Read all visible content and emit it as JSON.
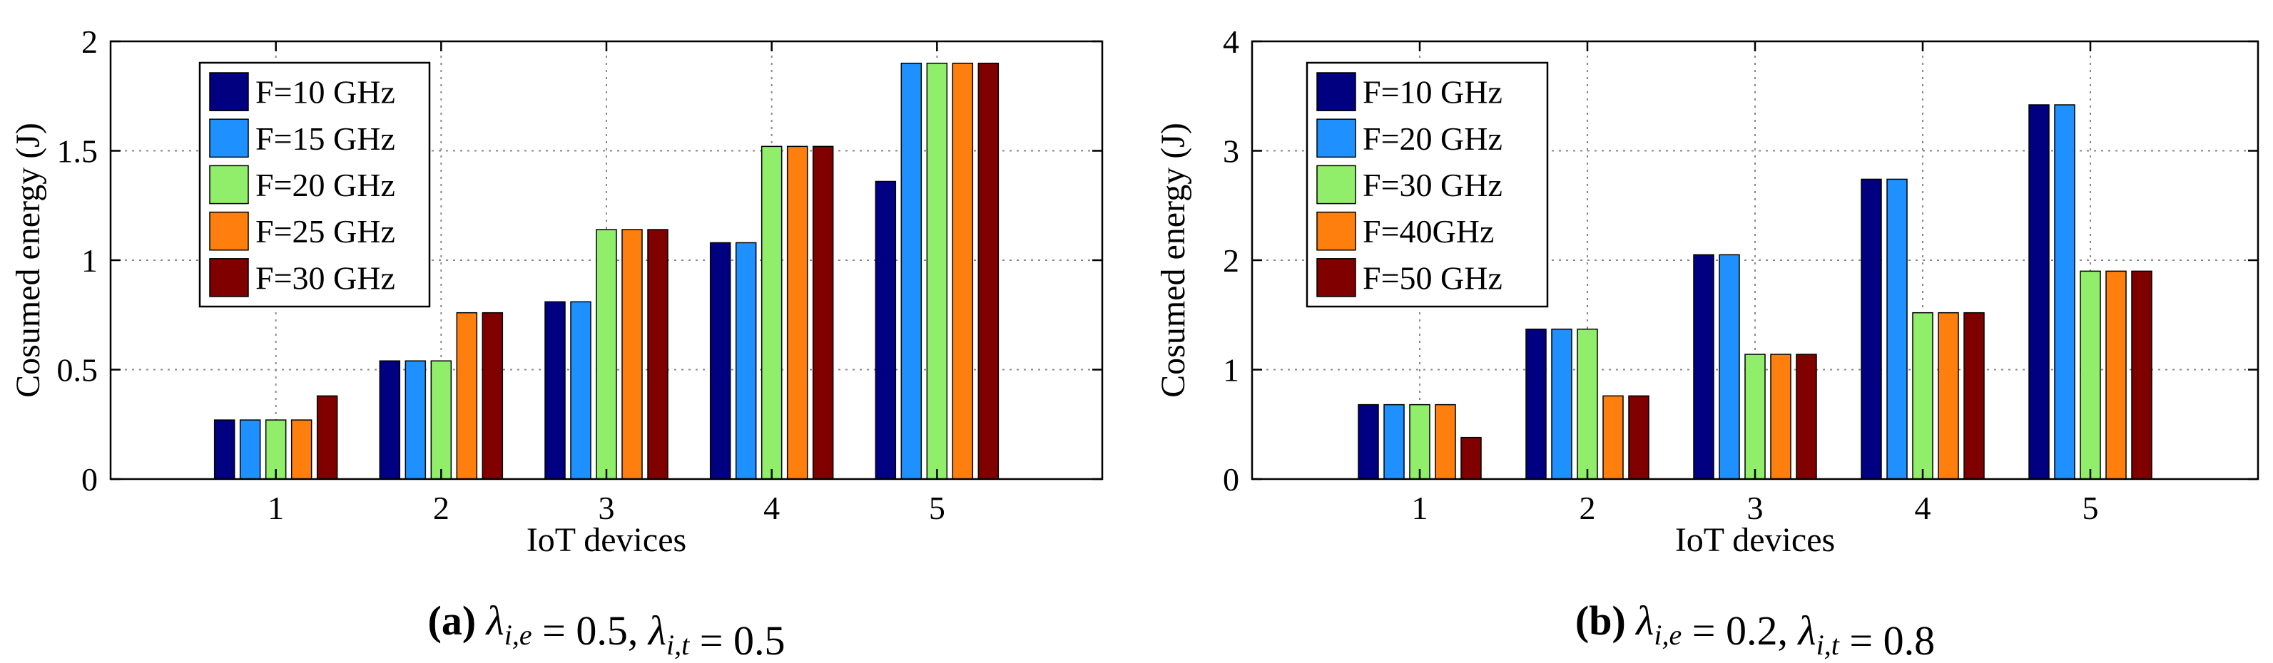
{
  "chart_data": [
    {
      "type": "bar",
      "id": "a",
      "categories": [
        "1",
        "2",
        "3",
        "4",
        "5"
      ],
      "series": [
        {
          "name": "F=10 GHz",
          "color": "#000080",
          "values": [
            0.27,
            0.54,
            0.81,
            1.08,
            1.36
          ]
        },
        {
          "name": "F=15 GHz",
          "color": "#1e90ff",
          "values": [
            0.27,
            0.54,
            0.81,
            1.08,
            1.9
          ]
        },
        {
          "name": "F=20 GHz",
          "color": "#90ee6a",
          "values": [
            0.27,
            0.54,
            1.14,
            1.52,
            1.9
          ]
        },
        {
          "name": "F=25 GHz",
          "color": "#ff7f0e",
          "values": [
            0.27,
            0.76,
            1.14,
            1.52,
            1.9
          ]
        },
        {
          "name": "F=30 GHz",
          "color": "#800000",
          "values": [
            0.38,
            0.76,
            1.14,
            1.52,
            1.9
          ]
        }
      ],
      "xlabel": "IoT devices",
      "ylabel": "Cosumed energy (J)",
      "xlim": [
        0,
        6
      ],
      "ylim": [
        0,
        2
      ],
      "yticks": [
        0,
        0.5,
        1,
        1.5,
        2
      ],
      "ytick_labels": [
        "0",
        "0.5",
        "1",
        "1.5",
        "2"
      ],
      "grid": true,
      "legend_position": "top-left",
      "caption": {
        "letter": "(a)",
        "lambda_e_sub": "i,e",
        "lambda_e_value": "= 0.5,",
        "lambda_t_sub": "i,t",
        "lambda_t_value": "= 0.5"
      }
    },
    {
      "type": "bar",
      "id": "b",
      "categories": [
        "1",
        "2",
        "3",
        "4",
        "5"
      ],
      "series": [
        {
          "name": "F=10 GHz",
          "color": "#000080",
          "values": [
            0.68,
            1.37,
            2.05,
            2.74,
            3.42
          ]
        },
        {
          "name": "F=20 GHz",
          "color": "#1e90ff",
          "values": [
            0.68,
            1.37,
            2.05,
            2.74,
            3.42
          ]
        },
        {
          "name": "F=30 GHz",
          "color": "#90ee6a",
          "values": [
            0.68,
            1.37,
            1.14,
            1.52,
            1.9
          ]
        },
        {
          "name": "F=40GHz",
          "color": "#ff7f0e",
          "values": [
            0.68,
            0.76,
            1.14,
            1.52,
            1.9
          ]
        },
        {
          "name": "F=50 GHz",
          "color": "#800000",
          "values": [
            0.38,
            0.76,
            1.14,
            1.52,
            1.9
          ]
        }
      ],
      "xlabel": "IoT devices",
      "ylabel": "Cosumed energy (J)",
      "xlim": [
        0,
        6
      ],
      "ylim": [
        0,
        4
      ],
      "yticks": [
        0,
        1,
        2,
        3,
        4
      ],
      "ytick_labels": [
        "0",
        "1",
        "2",
        "3",
        "4"
      ],
      "grid": true,
      "legend_position": "top-left",
      "caption": {
        "letter": "(b)",
        "lambda_e_sub": "i,e",
        "lambda_e_value": "= 0.2,",
        "lambda_t_sub": "i,t",
        "lambda_t_value": "= 0.8"
      }
    }
  ],
  "lambda_symbol": "λ"
}
